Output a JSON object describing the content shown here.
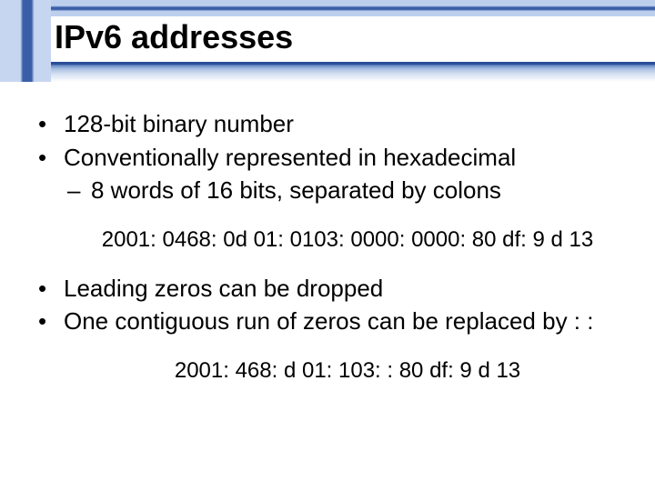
{
  "slide": {
    "title": "IPv6 addresses",
    "title_fontsize": 36,
    "title_color": "#000000",
    "strip_dark": "#3a5ea8",
    "strip_light": "#bcd0ee",
    "underline_gradient": [
      "#2a4f98",
      "#6b8cc5",
      "#a8bfe2",
      "#d5e0f2",
      "#ffffff"
    ],
    "body_fontsize": 26,
    "example_fontsize": 24,
    "background_color": "#ffffff",
    "bullets": [
      {
        "level": 1,
        "text": "128-bit binary number"
      },
      {
        "level": 1,
        "text": "Conventionally represented in hexadecimal"
      },
      {
        "level": 2,
        "text": "8 words of 16 bits, separated by colons"
      }
    ],
    "example1": "2001: 0468: 0d 01: 0103: 0000: 0000: 80 df: 9 d 13",
    "bullets2": [
      {
        "level": 1,
        "text": "Leading zeros can be dropped"
      },
      {
        "level": 1,
        "text": "One contiguous run of zeros can be replaced by : :"
      }
    ],
    "example2": "2001: 468: d 01: 103: : 80 df: 9 d 13"
  }
}
